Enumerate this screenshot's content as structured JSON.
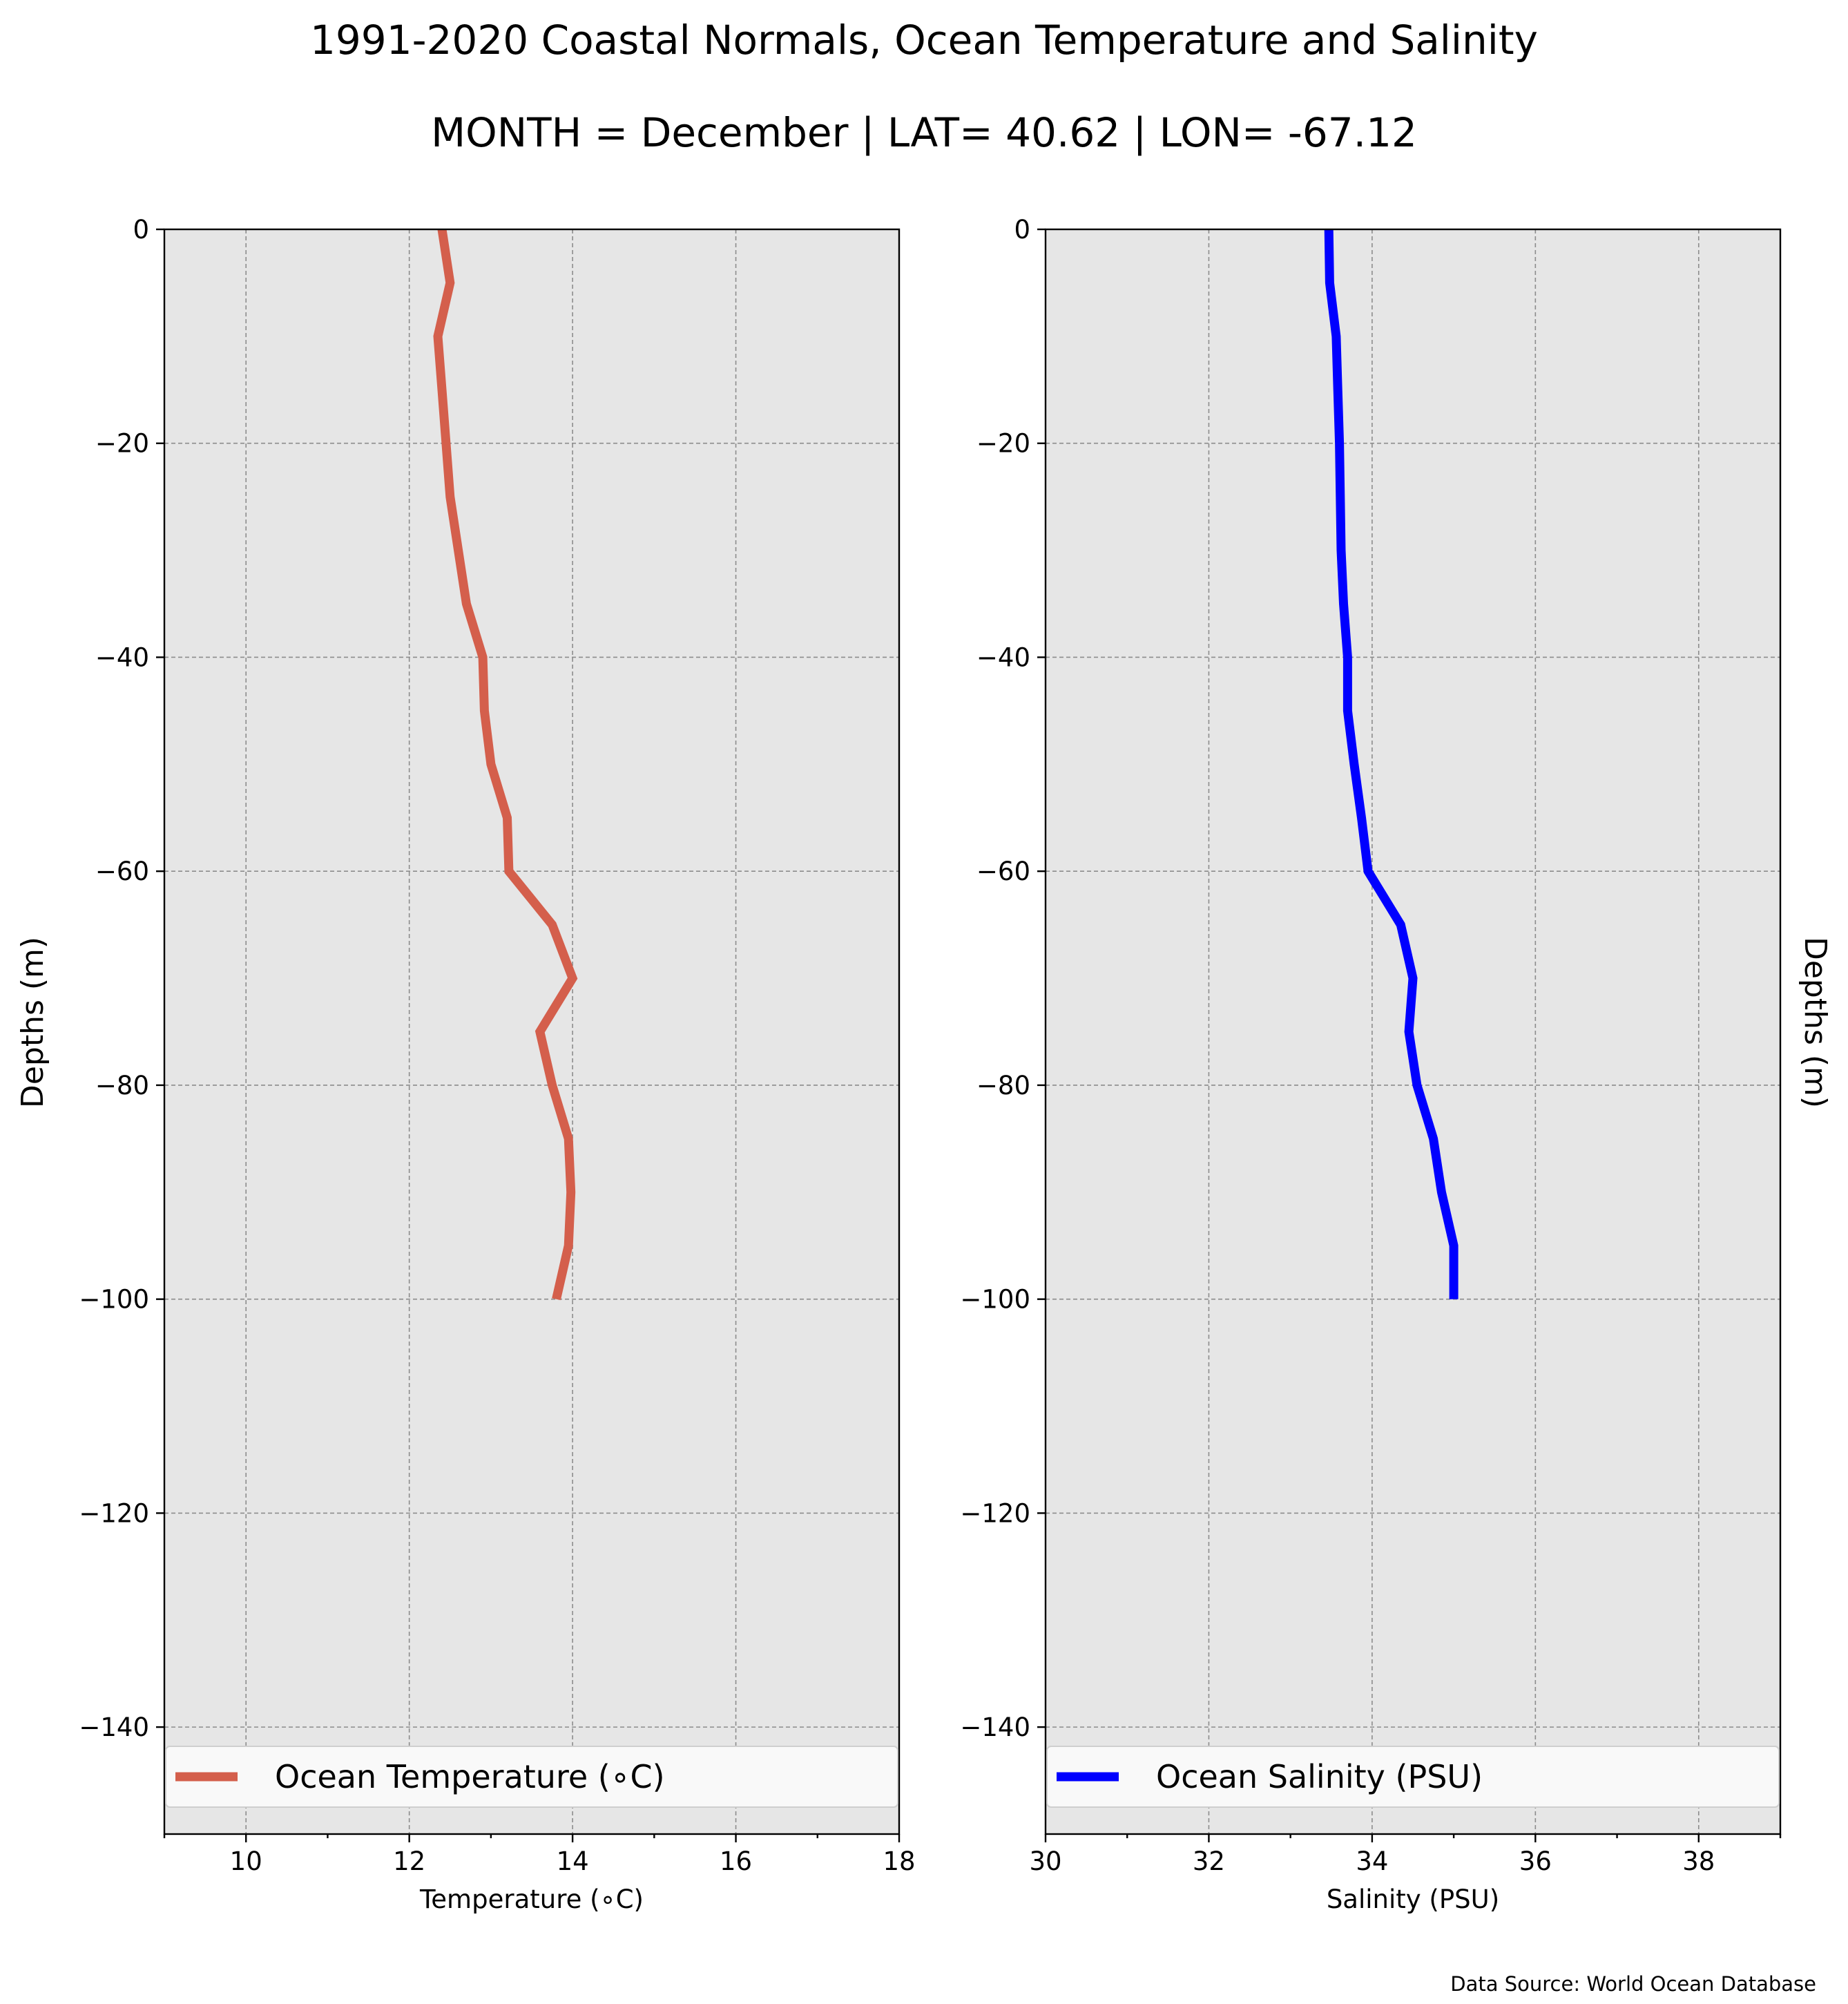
{
  "title": "1991-2020 Coastal Normals, Ocean Temperature and Salinity",
  "subtitle": "MONTH = December | LAT= 40.62 | LON= -67.12",
  "source": "Data Source: World Ocean Database",
  "chart_data": [
    {
      "type": "line",
      "xlabel": "Temperature (∘C)",
      "ylabel": "Depths (m)",
      "xlim": [
        9,
        18
      ],
      "ylim": [
        -150,
        0
      ],
      "xticks": [
        10,
        12,
        14,
        16,
        18
      ],
      "xtick_labels": [
        "10",
        "12",
        "14",
        "16",
        "18"
      ],
      "yticks": [
        0,
        -20,
        -40,
        -60,
        -80,
        -100,
        -120,
        -140
      ],
      "ytick_labels": [
        "0",
        "−20",
        "−40",
        "−60",
        "−80",
        "−100",
        "−120",
        "−140"
      ],
      "grid": true,
      "legend_position": "bottom",
      "color": "#d45f4c",
      "series": [
        {
          "name": "Ocean Temperature (∘C)",
          "x": [
            12.4,
            12.5,
            12.35,
            12.4,
            12.45,
            12.5,
            12.6,
            12.7,
            12.9,
            12.92,
            13.0,
            13.2,
            13.22,
            13.75,
            14.0,
            13.6,
            13.75,
            13.95,
            13.98,
            13.95,
            13.8
          ],
          "y": [
            0,
            -5,
            -10,
            -15,
            -20,
            -25,
            -30,
            -35,
            -40,
            -45,
            -50,
            -55,
            -60,
            -65,
            -70,
            -75,
            -80,
            -85,
            -90,
            -95,
            -100
          ]
        }
      ]
    },
    {
      "type": "line",
      "xlabel": "Salinity (PSU)",
      "ylabel": "Depths (m)",
      "xlim": [
        30,
        39
      ],
      "ylim": [
        -150,
        0
      ],
      "xticks": [
        30,
        32,
        34,
        36,
        38
      ],
      "xtick_labels": [
        "30",
        "32",
        "34",
        "36",
        "38"
      ],
      "yticks": [
        0,
        -20,
        -40,
        -60,
        -80,
        -100,
        -120,
        -140
      ],
      "ytick_labels": [
        "0",
        "−20",
        "−40",
        "−60",
        "−80",
        "−100",
        "−120",
        "−140"
      ],
      "grid": true,
      "legend_position": "bottom",
      "color": "#0000ff",
      "series": [
        {
          "name": "Ocean Salinity (PSU)",
          "x": [
            33.47,
            33.48,
            33.56,
            33.58,
            33.6,
            33.61,
            33.62,
            33.65,
            33.7,
            33.7,
            33.78,
            33.87,
            33.95,
            34.35,
            34.5,
            34.45,
            34.55,
            34.75,
            34.85,
            35.0,
            35.0
          ],
          "y": [
            0,
            -5,
            -10,
            -15,
            -20,
            -25,
            -30,
            -35,
            -40,
            -45,
            -50,
            -55,
            -60,
            -65,
            -70,
            -75,
            -80,
            -85,
            -90,
            -95,
            -100
          ]
        }
      ]
    }
  ]
}
